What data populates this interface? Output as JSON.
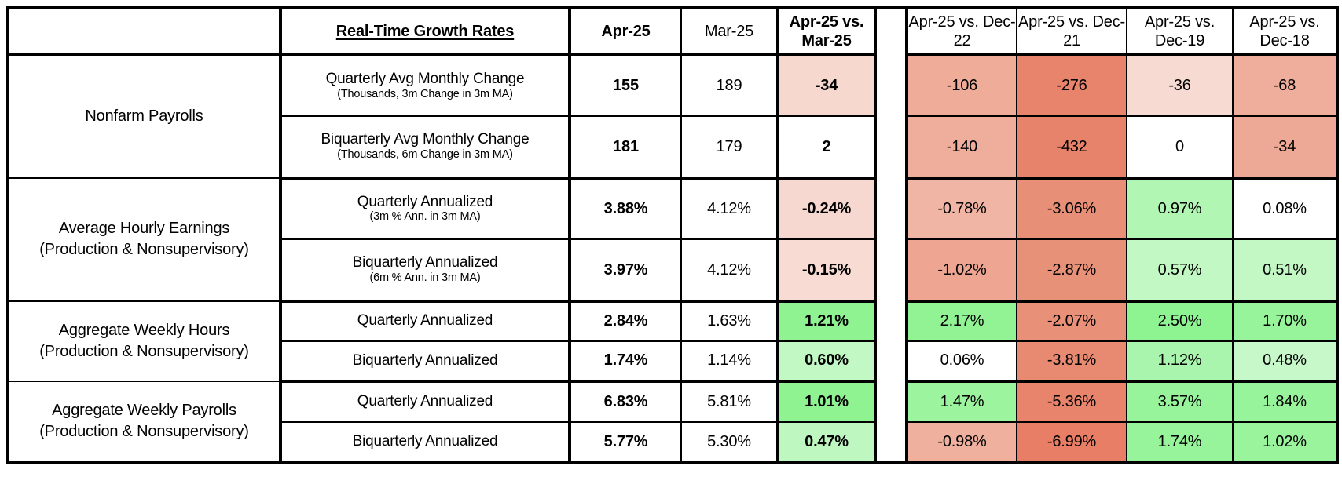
{
  "chart_data": {
    "type": "table",
    "metric_header": "Real-Time Growth Rates",
    "value_columns": [
      {
        "label": "Apr-25",
        "bold": true
      },
      {
        "label": "Mar-25",
        "bold": false
      },
      {
        "label": "Apr-25 vs. Mar-25",
        "bold": true
      },
      {
        "label": "Apr-25 vs. Dec-22",
        "bold": false
      },
      {
        "label": "Apr-25 vs. Dec-21",
        "bold": false
      },
      {
        "label": "Apr-25 vs. Dec-19",
        "bold": false
      },
      {
        "label": "Apr-25 vs. Dec-18",
        "bold": false
      }
    ],
    "palette": {
      "negative_strong": "#E8836B",
      "negative_medium": "#EFAD9B",
      "negative_light": "#F7D9D0",
      "positive_strong": "#8FF392",
      "positive_medium": "#AAF5AD",
      "positive_light": "#C5F8C6",
      "neutral": "#FFFFFF",
      "border": "#000000"
    },
    "groups": [
      {
        "label": "Nonfarm Payrolls",
        "sublabel": "",
        "rows": [
          {
            "metric": "Quarterly Avg Monthly Change",
            "note": "(Thousands, 3m Change in 3m MA)",
            "values": [
              "155",
              "189",
              "-34",
              "-106",
              "-276",
              "-36",
              "-68"
            ],
            "colors": [
              "#FFFFFF",
              "#FFFFFF",
              "#F7D8CF",
              "#EEAC99",
              "#E8846C",
              "#F7DAD2",
              "#EFAE9C"
            ]
          },
          {
            "metric": "Biquarterly Avg Monthly Change",
            "note": "(Thousands, 6m Change in 3m MA)",
            "values": [
              "181",
              "179",
              "2",
              "-140",
              "-432",
              "0",
              "-34"
            ],
            "colors": [
              "#FFFFFF",
              "#FFFFFF",
              "#FFFFFF",
              "#EFAD9B",
              "#E8836B",
              "#FFFFFF",
              "#EEA996"
            ]
          }
        ]
      },
      {
        "label": "Average Hourly Earnings",
        "sublabel": "(Production & Nonsupervisory)",
        "rows": [
          {
            "metric": "Quarterly Annualized",
            "note": "(3m % Ann. in 3m MA)",
            "values": [
              "3.88%",
              "4.12%",
              "-0.24%",
              "-0.78%",
              "-3.06%",
              "0.97%",
              "0.08%"
            ],
            "colors": [
              "#FFFFFF",
              "#FFFFFF",
              "#F7D8D0",
              "#F0B5A4",
              "#E88F77",
              "#B2F6B4",
              "#FFFFFF"
            ]
          },
          {
            "metric": "Biquarterly Annualized",
            "note": "(6m % Ann. in 3m MA)",
            "values": [
              "3.97%",
              "4.12%",
              "-0.15%",
              "-1.02%",
              "-2.87%",
              "0.57%",
              "0.51%"
            ],
            "colors": [
              "#FFFFFF",
              "#FFFFFF",
              "#F8DCD4",
              "#EEA692",
              "#E89179",
              "#C1F8C3",
              "#C3F8C5"
            ]
          }
        ]
      },
      {
        "label": "Aggregate Weekly Hours",
        "sublabel": "(Production & Nonsupervisory)",
        "rows": [
          {
            "metric": "Quarterly Annualized",
            "note": "",
            "values": [
              "2.84%",
              "1.63%",
              "1.21%",
              "2.17%",
              "-2.07%",
              "2.50%",
              "1.70%"
            ],
            "colors": [
              "#FFFFFF",
              "#FFFFFF",
              "#8FF392",
              "#92F394",
              "#E89078",
              "#8EF391",
              "#97F49A"
            ]
          },
          {
            "metric": "Biquarterly Annualized",
            "note": "",
            "values": [
              "1.74%",
              "1.14%",
              "0.60%",
              "0.06%",
              "-3.81%",
              "1.12%",
              "0.48%"
            ],
            "colors": [
              "#FFFFFF",
              "#FFFFFF",
              "#C1F8C3",
              "#FFFFFF",
              "#E88A71",
              "#AAF5AD",
              "#C7F8C9"
            ]
          }
        ]
      },
      {
        "label": "Aggregate Weekly Payrolls",
        "sublabel": "(Production & Nonsupervisory)",
        "rows": [
          {
            "metric": "Quarterly Annualized",
            "note": "",
            "values": [
              "6.83%",
              "5.81%",
              "1.01%",
              "1.47%",
              "-5.36%",
              "3.57%",
              "1.84%"
            ],
            "colors": [
              "#FFFFFF",
              "#FFFFFF",
              "#8FF392",
              "#9CF49F",
              "#E8846C",
              "#97F49A",
              "#97F49A"
            ]
          },
          {
            "metric": "Biquarterly Annualized",
            "note": "",
            "values": [
              "5.77%",
              "5.30%",
              "0.47%",
              "-0.98%",
              "-6.99%",
              "1.74%",
              "1.02%"
            ],
            "colors": [
              "#FFFFFF",
              "#FFFFFF",
              "#BFF7C1",
              "#EFB09E",
              "#E87E65",
              "#97F49A",
              "#99F49C"
            ]
          }
        ]
      }
    ]
  }
}
